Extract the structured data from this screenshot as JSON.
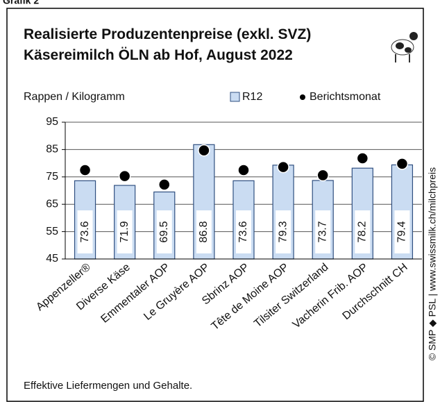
{
  "header": "Grafik 2",
  "chart_data": {
    "type": "bar",
    "title": "Realisierte Produzentenpreise (exkl. SVZ)",
    "subtitle": "Käsereimilch ÖLN ab Hof, August 2022",
    "y_label": "Rappen / Kilogramm",
    "categories": [
      "Appenzeller®",
      "Diverse Käse",
      "Emmentaler AOP",
      "Le Gruyère AOP",
      "Sbrinz AOP",
      "Tête de Moine AOP",
      "Tilsiter Switzerland",
      "Vacherin Frib. AOP",
      "Durchschnitt CH"
    ],
    "series": [
      {
        "name": "R12",
        "color": "#cadcf2",
        "values": [
          73.6,
          71.9,
          69.5,
          86.8,
          73.6,
          79.3,
          73.7,
          78.2,
          79.4
        ]
      },
      {
        "name": "Berichtsmonat",
        "color": "#000000",
        "values": [
          77.5,
          75.3,
          72.2,
          84.7,
          77.5,
          78.6,
          75.6,
          81.8,
          79.8
        ]
      }
    ],
    "ylim": [
      45,
      95
    ],
    "yticks": [
      45,
      55,
      65,
      75,
      85,
      95
    ],
    "grid": true,
    "footnote": "Effektive Liefermengen und Gehalte.",
    "source": "© SMP ◆ PSL | www.swissmilk.ch/milchpreis"
  }
}
